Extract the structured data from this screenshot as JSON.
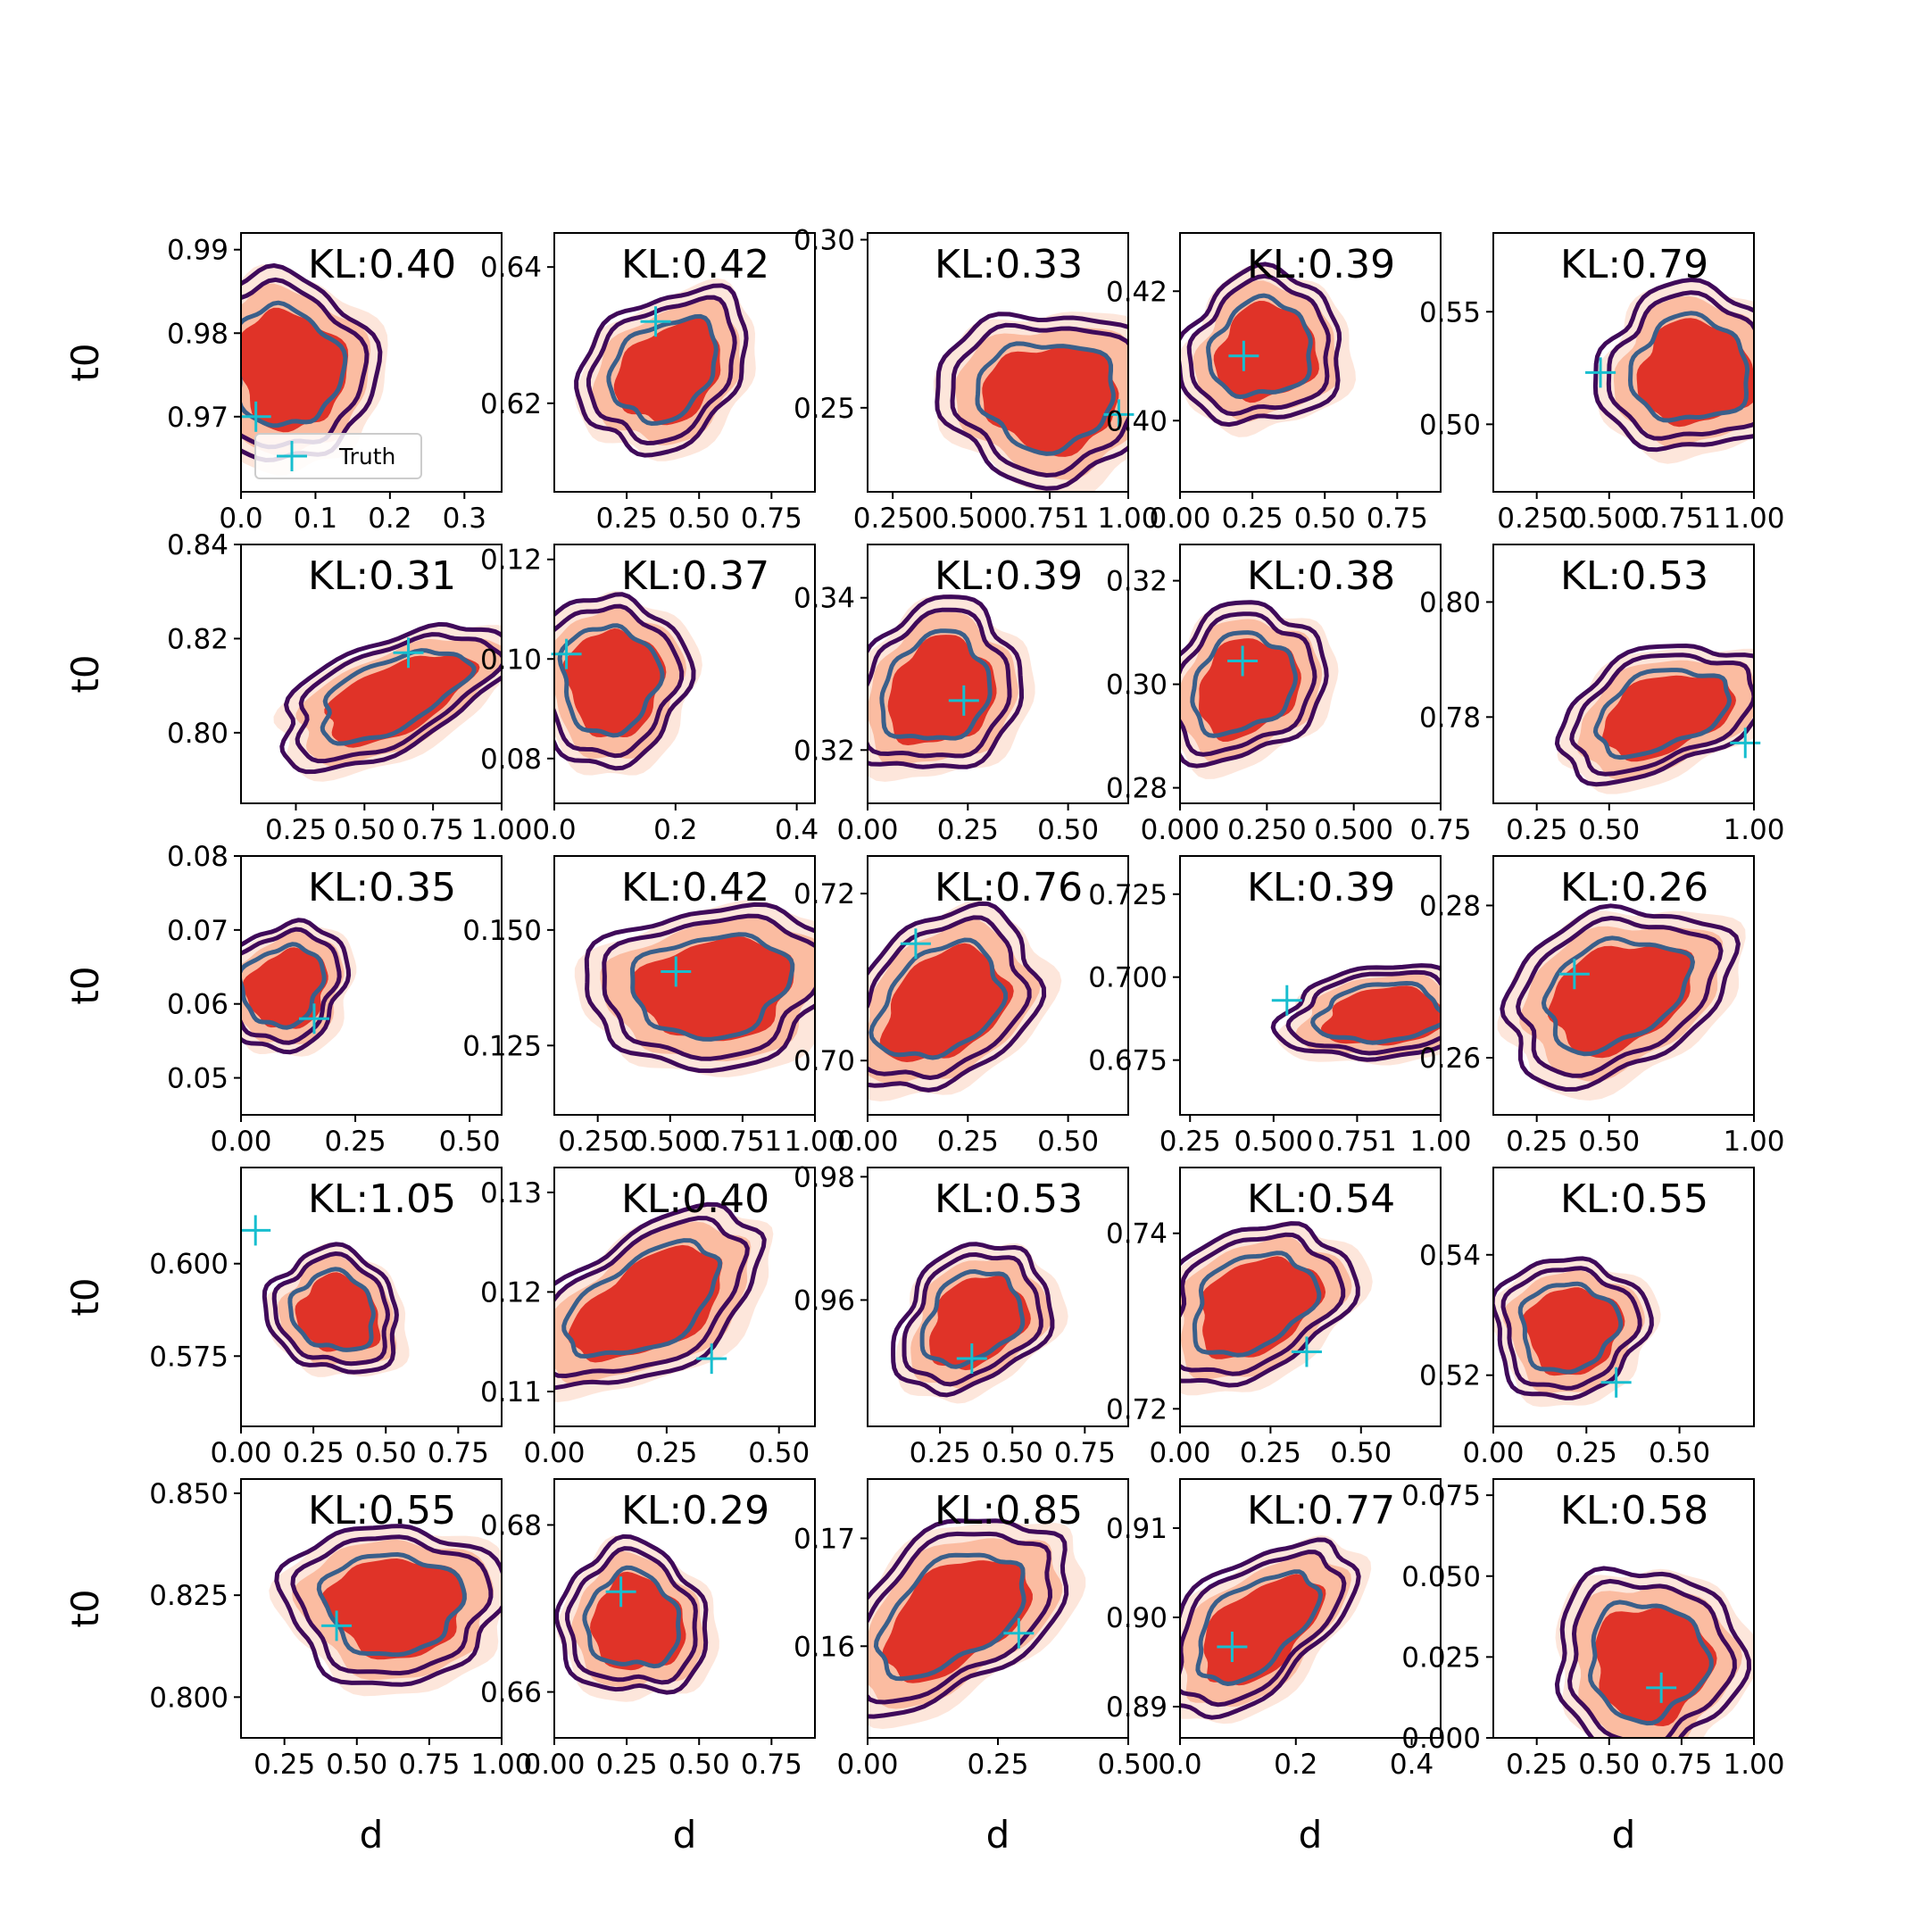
{
  "chart_data": {
    "type": "contour",
    "rows": 5,
    "cols": 5,
    "xlabel": "d",
    "ylabel": "t0",
    "legend": {
      "label": "Truth",
      "marker": "+",
      "color": "#17becf",
      "placement": "lower-left of first panel"
    },
    "colors": {
      "fill_outer": "#fde0d2",
      "fill_mid": "#fbb79a",
      "fill_inner": "#e03328",
      "contour_outer": "#3f0a5a",
      "contour_inner": "#3a5f8a",
      "truth": "#17becf"
    },
    "panels": [
      {
        "kl": "KL:0.40",
        "xlim": [
          0,
          0.35
        ],
        "ylim": [
          0.961,
          0.992
        ],
        "xticks": [
          "0.0",
          "0.1",
          "0.2",
          "0.3"
        ],
        "xtick_vals": [
          0,
          0.1,
          0.2,
          0.3
        ],
        "yticks": [
          "0.97",
          "0.98",
          "0.99"
        ],
        "ytick_vals": [
          0.97,
          0.98,
          0.99
        ],
        "center": [
          0.06,
          0.976
        ],
        "spread": [
          0.1,
          0.01
        ],
        "tilt": -20,
        "truth": [
          0.02,
          0.97
        ],
        "legend": true
      },
      {
        "kl": "KL:0.42",
        "xlim": [
          0,
          0.9
        ],
        "ylim": [
          0.607,
          0.645
        ],
        "xticks": [
          "0.25",
          "0.50",
          "0.75"
        ],
        "xtick_vals": [
          0.25,
          0.5,
          0.75
        ],
        "yticks": [
          "0.62",
          "0.64"
        ],
        "ytick_vals": [
          0.62,
          0.64
        ],
        "center": [
          0.38,
          0.625
        ],
        "spread": [
          0.28,
          0.009
        ],
        "tilt": -40,
        "truth": [
          0.35,
          0.632
        ]
      },
      {
        "kl": "KL:0.33",
        "xlim": [
          0.17,
          1.0
        ],
        "ylim": [
          0.225,
          0.302
        ],
        "xticks": [
          "0.250",
          "0.500",
          "0.751",
          "1.00"
        ],
        "xtick_vals": [
          0.25,
          0.5,
          0.75,
          1.0
        ],
        "yticks": [
          "0.25",
          "0.30"
        ],
        "ytick_vals": [
          0.25,
          0.3
        ],
        "center": [
          0.74,
          0.254
        ],
        "spread": [
          0.3,
          0.022
        ],
        "tilt": 0,
        "truth": [
          0.97,
          0.248
        ]
      },
      {
        "kl": "KL:0.39",
        "xlim": [
          0,
          0.9
        ],
        "ylim": [
          0.389,
          0.429
        ],
        "xticks": [
          "0.00",
          "0.25",
          "0.50",
          "0.75"
        ],
        "xtick_vals": [
          0,
          0.25,
          0.5,
          0.75
        ],
        "yticks": [
          "0.40",
          "0.42"
        ],
        "ytick_vals": [
          0.4,
          0.42
        ],
        "center": [
          0.28,
          0.411
        ],
        "spread": [
          0.25,
          0.01
        ],
        "tilt": -30,
        "truth": [
          0.22,
          0.41
        ]
      },
      {
        "kl": "KL:0.79",
        "xlim": [
          0.1,
          1.0
        ],
        "ylim": [
          0.47,
          0.585
        ],
        "xticks": [
          "0.250",
          "0.500",
          "0.751",
          "1.00"
        ],
        "xtick_vals": [
          0.25,
          0.5,
          0.75,
          1.0
        ],
        "yticks": [
          "0.50",
          "0.55"
        ],
        "ytick_vals": [
          0.5,
          0.55
        ],
        "center": [
          0.78,
          0.524
        ],
        "spread": [
          0.28,
          0.032
        ],
        "tilt": -5,
        "truth": [
          0.47,
          0.523
        ]
      },
      {
        "kl": "KL:0.31",
        "xlim": [
          0.05,
          1.0
        ],
        "ylim": [
          0.785,
          0.84
        ],
        "xticks": [
          "0.25",
          "0.50",
          "0.75",
          "1.00"
        ],
        "xtick_vals": [
          0.25,
          0.5,
          0.75,
          1.0
        ],
        "yticks": [
          "0.80",
          "0.82",
          "0.84"
        ],
        "ytick_vals": [
          0.8,
          0.82,
          0.84
        ],
        "center": [
          0.6,
          0.808
        ],
        "spread": [
          0.4,
          0.01
        ],
        "tilt": -25,
        "truth": [
          0.66,
          0.817
        ]
      },
      {
        "kl": "KL:0.37",
        "xlim": [
          0,
          0.43
        ],
        "ylim": [
          0.071,
          0.123
        ],
        "xticks": [
          "0.0",
          "0.2",
          "0.4"
        ],
        "xtick_vals": [
          0,
          0.2,
          0.4
        ],
        "yticks": [
          "0.08",
          "0.10",
          "0.12"
        ],
        "ytick_vals": [
          0.08,
          0.1,
          0.12
        ],
        "center": [
          0.09,
          0.096
        ],
        "spread": [
          0.11,
          0.015
        ],
        "tilt": 0,
        "truth": [
          0.02,
          0.101
        ]
      },
      {
        "kl": "KL:0.39",
        "xlim": [
          0,
          0.65
        ],
        "ylim": [
          0.313,
          0.347
        ],
        "xticks": [
          "0.00",
          "0.25",
          "0.50"
        ],
        "xtick_vals": [
          0,
          0.25,
          0.5
        ],
        "yticks": [
          "0.32",
          "0.34"
        ],
        "ytick_vals": [
          0.32,
          0.34
        ],
        "center": [
          0.17,
          0.328
        ],
        "spread": [
          0.2,
          0.009
        ],
        "tilt": -45,
        "truth": [
          0.24,
          0.3265
        ]
      },
      {
        "kl": "KL:0.38",
        "xlim": [
          0,
          0.75
        ],
        "ylim": [
          0.277,
          0.327
        ],
        "xticks": [
          "0.000",
          "0.250",
          "0.500",
          "0.75"
        ],
        "xtick_vals": [
          0,
          0.25,
          0.5,
          0.75
        ],
        "yticks": [
          "0.28",
          "0.30",
          "0.32"
        ],
        "ytick_vals": [
          0.28,
          0.3,
          0.32
        ],
        "center": [
          0.18,
          0.3
        ],
        "spread": [
          0.22,
          0.012
        ],
        "tilt": -40,
        "truth": [
          0.18,
          0.3045
        ]
      },
      {
        "kl": "KL:0.53",
        "xlim": [
          0.1,
          1.0
        ],
        "ylim": [
          0.765,
          0.81
        ],
        "xticks": [
          "0.25",
          "0.50",
          "1.00"
        ],
        "xtick_vals": [
          0.25,
          0.5,
          1.0
        ],
        "yticks": [
          "0.78",
          "0.80"
        ],
        "ytick_vals": [
          0.78,
          0.8
        ],
        "center": [
          0.68,
          0.781
        ],
        "spread": [
          0.33,
          0.009
        ],
        "tilt": -20,
        "truth": [
          0.97,
          0.7755
        ]
      },
      {
        "kl": "KL:0.35",
        "xlim": [
          0,
          0.57
        ],
        "ylim": [
          0.045,
          0.08
        ],
        "xticks": [
          "0.00",
          "0.25",
          "0.50"
        ],
        "xtick_vals": [
          0,
          0.25,
          0.5
        ],
        "yticks": [
          "0.05",
          "0.06",
          "0.07",
          "0.08"
        ],
        "ytick_vals": [
          0.05,
          0.06,
          0.07,
          0.08
        ],
        "center": [
          0.09,
          0.0625
        ],
        "spread": [
          0.13,
          0.007
        ],
        "tilt": -40,
        "truth": [
          0.16,
          0.058
        ]
      },
      {
        "kl": "KL:0.42",
        "xlim": [
          0.1,
          1.0
        ],
        "ylim": [
          0.11,
          0.166
        ],
        "xticks": [
          "0.250",
          "0.500",
          "0.751",
          "1.00"
        ],
        "xtick_vals": [
          0.25,
          0.5,
          0.75,
          1.0
        ],
        "yticks": [
          "0.125",
          "0.150"
        ],
        "ytick_vals": [
          0.125,
          0.15
        ],
        "center": [
          0.64,
          0.138
        ],
        "spread": [
          0.38,
          0.015
        ],
        "tilt": -8,
        "truth": [
          0.52,
          0.141
        ]
      },
      {
        "kl": "KL:0.76",
        "xlim": [
          0,
          0.65
        ],
        "ylim": [
          0.6935,
          0.7245
        ],
        "xticks": [
          "0.00",
          "0.25",
          "0.50"
        ],
        "xtick_vals": [
          0,
          0.25,
          0.5
        ],
        "yticks": [
          "0.70",
          "0.72"
        ],
        "ytick_vals": [
          0.7,
          0.72
        ],
        "center": [
          0.18,
          0.707
        ],
        "spread": [
          0.24,
          0.008
        ],
        "tilt": -38,
        "truth": [
          0.12,
          0.714
        ]
      },
      {
        "kl": "KL:0.39",
        "xlim": [
          0.22,
          1.0
        ],
        "ylim": [
          0.6585,
          0.7365
        ],
        "xticks": [
          "0.25",
          "0.500",
          "0.751",
          "1.00"
        ],
        "xtick_vals": [
          0.25,
          0.5,
          0.75,
          1.0
        ],
        "yticks": [
          "0.675",
          "0.700",
          "0.725"
        ],
        "ytick_vals": [
          0.675,
          0.7,
          0.725
        ],
        "center": [
          0.82,
          0.689
        ],
        "spread": [
          0.26,
          0.012
        ],
        "tilt": -5,
        "truth": [
          0.54,
          0.693
        ]
      },
      {
        "kl": "KL:0.26",
        "xlim": [
          0.1,
          1.0
        ],
        "ylim": [
          0.2525,
          0.2865
        ],
        "xticks": [
          "0.25",
          "0.50",
          "1.00"
        ],
        "xtick_vals": [
          0.25,
          0.5,
          1.0
        ],
        "yticks": [
          "0.26",
          "0.28"
        ],
        "ytick_vals": [
          0.26,
          0.28
        ],
        "center": [
          0.52,
          0.2685
        ],
        "spread": [
          0.36,
          0.009
        ],
        "tilt": -25,
        "truth": [
          0.38,
          0.271
        ]
      },
      {
        "kl": "KL:1.05",
        "xlim": [
          0,
          0.9
        ],
        "ylim": [
          0.556,
          0.626
        ],
        "xticks": [
          "0.00",
          "0.25",
          "0.50",
          "0.75"
        ],
        "xtick_vals": [
          0,
          0.25,
          0.5,
          0.75
        ],
        "yticks": [
          "0.575",
          "0.600"
        ],
        "ytick_vals": [
          0.575,
          0.6
        ],
        "center": [
          0.32,
          0.587
        ],
        "spread": [
          0.18,
          0.016
        ],
        "tilt": -60,
        "truth": [
          0.05,
          0.609
        ]
      },
      {
        "kl": "KL:0.40",
        "xlim": [
          0,
          0.58
        ],
        "ylim": [
          0.1065,
          0.1325
        ],
        "xticks": [
          "0.00",
          "0.25",
          "0.50"
        ],
        "xtick_vals": [
          0,
          0.25,
          0.5
        ],
        "yticks": [
          "0.11",
          "0.12",
          "0.13"
        ],
        "ytick_vals": [
          0.11,
          0.12,
          0.13
        ],
        "center": [
          0.2,
          0.119
        ],
        "spread": [
          0.26,
          0.006
        ],
        "tilt": -30,
        "truth": [
          0.35,
          0.1133
        ]
      },
      {
        "kl": "KL:0.53",
        "xlim": [
          0,
          0.9
        ],
        "ylim": [
          0.9395,
          0.9815
        ],
        "xticks": [
          "0.25",
          "0.50",
          "0.75"
        ],
        "xtick_vals": [
          0.25,
          0.5,
          0.75
        ],
        "yticks": [
          "0.96",
          "0.98"
        ],
        "ytick_vals": [
          0.96,
          0.98
        ],
        "center": [
          0.36,
          0.957
        ],
        "spread": [
          0.26,
          0.009
        ],
        "tilt": -40,
        "truth": [
          0.36,
          0.9505
        ]
      },
      {
        "kl": "KL:0.54",
        "xlim": [
          0,
          0.72
        ],
        "ylim": [
          0.718,
          0.7475
        ],
        "xticks": [
          "0.00",
          "0.25",
          "0.50"
        ],
        "xtick_vals": [
          0,
          0.25,
          0.5
        ],
        "yticks": [
          "0.72",
          "0.74"
        ],
        "ytick_vals": [
          0.72,
          0.74
        ],
        "center": [
          0.2,
          0.732
        ],
        "spread": [
          0.25,
          0.007
        ],
        "tilt": -30,
        "truth": [
          0.35,
          0.7265
        ]
      },
      {
        "kl": "KL:0.55",
        "xlim": [
          0,
          0.7
        ],
        "ylim": [
          0.5115,
          0.5545
        ],
        "xticks": [
          "0.00",
          "0.25",
          "0.50"
        ],
        "xtick_vals": [
          0,
          0.25,
          0.5
        ],
        "yticks": [
          "0.52",
          "0.54"
        ],
        "ytick_vals": [
          0.52,
          0.54
        ],
        "center": [
          0.2,
          0.528
        ],
        "spread": [
          0.18,
          0.01
        ],
        "tilt": -15,
        "truth": [
          0.33,
          0.5188
        ]
      },
      {
        "kl": "KL:0.55",
        "xlim": [
          0.1,
          1.0
        ],
        "ylim": [
          0.79,
          0.8535
        ],
        "xticks": [
          "0.25",
          "0.50",
          "0.75",
          "1.00"
        ],
        "xtick_vals": [
          0.25,
          0.5,
          0.75,
          1.0
        ],
        "yticks": [
          "0.800",
          "0.825",
          "0.850"
        ],
        "ytick_vals": [
          0.8,
          0.825,
          0.85
        ],
        "center": [
          0.62,
          0.823
        ],
        "spread": [
          0.33,
          0.017
        ],
        "tilt": 0,
        "truth": [
          0.43,
          0.8175
        ]
      },
      {
        "kl": "KL:0.29",
        "xlim": [
          0,
          0.9
        ],
        "ylim": [
          0.6545,
          0.6855
        ],
        "xticks": [
          "0.00",
          "0.25",
          "0.50",
          "0.75"
        ],
        "xtick_vals": [
          0,
          0.25,
          0.5,
          0.75
        ],
        "yticks": [
          "0.66",
          "0.68"
        ],
        "ytick_vals": [
          0.66,
          0.68
        ],
        "center": [
          0.27,
          0.6685
        ],
        "spread": [
          0.22,
          0.008
        ],
        "tilt": -40,
        "truth": [
          0.23,
          0.672
        ]
      },
      {
        "kl": "KL:0.85",
        "xlim": [
          0,
          0.5
        ],
        "ylim": [
          0.1515,
          0.1755
        ],
        "xticks": [
          "0.00",
          "0.25",
          "0.50"
        ],
        "xtick_vals": [
          0,
          0.25,
          0.5
        ],
        "yticks": [
          "0.16",
          "0.17"
        ],
        "ytick_vals": [
          0.16,
          0.17
        ],
        "center": [
          0.16,
          0.163
        ],
        "spread": [
          0.22,
          0.006
        ],
        "tilt": -35,
        "truth": [
          0.29,
          0.1612
        ]
      },
      {
        "kl": "KL:0.77",
        "xlim": [
          0,
          0.45
        ],
        "ylim": [
          0.8865,
          0.9155
        ],
        "xticks": [
          "0.0",
          "0.2",
          "0.4"
        ],
        "xtick_vals": [
          0,
          0.2,
          0.4
        ],
        "yticks": [
          "0.89",
          "0.90",
          "0.91"
        ],
        "ytick_vals": [
          0.89,
          0.9,
          0.91
        ],
        "center": [
          0.13,
          0.899
        ],
        "spread": [
          0.17,
          0.006
        ],
        "tilt": -40,
        "truth": [
          0.09,
          0.8967
        ]
      },
      {
        "kl": "KL:0.58",
        "xlim": [
          0.1,
          1.0
        ],
        "ylim": [
          0,
          0.08
        ],
        "xticks": [
          "0.25",
          "0.50",
          "0.75",
          "1.00"
        ],
        "xtick_vals": [
          0.25,
          0.5,
          0.75,
          1.0
        ],
        "yticks": [
          "0.000",
          "0.025",
          "0.050",
          "0.075"
        ],
        "ytick_vals": [
          0,
          0.025,
          0.05,
          0.075
        ],
        "center": [
          0.63,
          0.024
        ],
        "spread": [
          0.28,
          0.025
        ],
        "tilt": 0,
        "truth": [
          0.68,
          0.0155
        ]
      }
    ]
  }
}
